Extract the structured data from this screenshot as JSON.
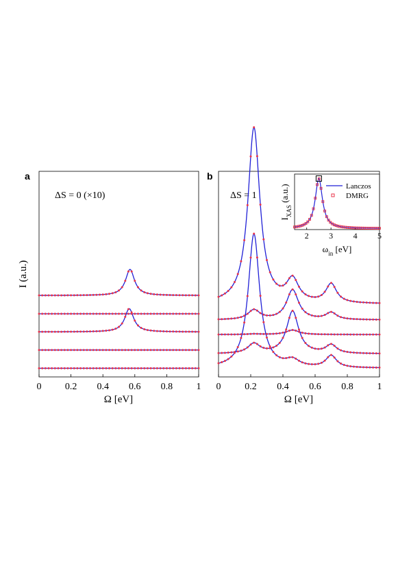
{
  "figure": {
    "panel_a_letter": "a",
    "panel_b_letter": "b",
    "colors": {
      "line": "#1f1fd6",
      "marker": "#e8334a",
      "axis": "#000000"
    }
  },
  "chart_data": [
    {
      "type": "line",
      "panel": "a",
      "annotation": "ΔS = 0 (×10)",
      "xlabel": "Ω [eV]",
      "ylabel": "I (a.u.)",
      "xlim": [
        0,
        1
      ],
      "xticks": [
        "0",
        "0.2",
        "0.4",
        "0.6",
        "0.8",
        "1"
      ],
      "yticks_shown": false,
      "series": [
        {
          "baseline": 0.42,
          "peaks": []
        },
        {
          "baseline": 1.31,
          "peaks": []
        },
        {
          "baseline": 2.19,
          "peaks": [
            {
              "center": 0.565,
              "height": 1.13,
              "width": 0.034
            }
          ]
        },
        {
          "baseline": 3.07,
          "peaks": []
        },
        {
          "baseline": 3.96,
          "peaks": [
            {
              "center": 0.57,
              "height": 1.27,
              "width": 0.034
            }
          ]
        }
      ]
    },
    {
      "type": "line",
      "panel": "b",
      "annotation": "ΔS = 1",
      "xlabel": "Ω [eV]",
      "xlim": [
        0,
        1
      ],
      "xticks": [
        "0",
        "0.2",
        "0.4",
        "0.6",
        "0.8",
        "1"
      ],
      "yticks_shown": false,
      "series": [
        {
          "baseline": 0.42,
          "peaks": [
            {
              "center": 0.22,
              "height": 6.53,
              "width": 0.043
            },
            {
              "center": 0.46,
              "height": 0.32,
              "width": 0.05
            },
            {
              "center": 0.7,
              "height": 0.58,
              "width": 0.04
            }
          ]
        },
        {
          "baseline": 1.12,
          "peaks": [
            {
              "center": 0.22,
              "height": 0.47,
              "width": 0.045
            },
            {
              "center": 0.46,
              "height": 2.07,
              "width": 0.045
            },
            {
              "center": 0.7,
              "height": 0.41,
              "width": 0.04
            }
          ]
        },
        {
          "baseline": 2.06,
          "peaks": [
            {
              "center": 0.22,
              "height": 0.03,
              "width": 0.05
            },
            {
              "center": 0.46,
              "height": 0.22,
              "width": 0.05
            }
          ]
        },
        {
          "baseline": 2.77,
          "peaks": [
            {
              "center": 0.22,
              "height": 0.47,
              "width": 0.045
            },
            {
              "center": 0.46,
              "height": 1.46,
              "width": 0.045
            },
            {
              "center": 0.7,
              "height": 0.34,
              "width": 0.04
            }
          ]
        },
        {
          "baseline": 3.54,
          "peaks": [
            {
              "center": 0.22,
              "height": 8.56,
              "width": 0.045
            },
            {
              "center": 0.46,
              "height": 1.07,
              "width": 0.045
            },
            {
              "center": 0.7,
              "height": 0.92,
              "width": 0.04
            }
          ]
        }
      ]
    },
    {
      "type": "line",
      "panel": "b-inset",
      "xlabel": "ω",
      "xlabel_sub": "in",
      "xlabel_unit": " [eV]",
      "ylabel": "I",
      "ylabel_sub": "XAS",
      "ylabel_unit": " (a.u.)",
      "xlim": [
        1.5,
        5
      ],
      "xticks": [
        "2",
        "3",
        "4",
        "5"
      ],
      "legend": {
        "position": "top-right",
        "line_label": "Lanczos",
        "marker_label": "DMRG"
      },
      "series": [
        {
          "name": "Lanczos",
          "peak_center": 2.5,
          "peak_height": 1.0,
          "peak_width": 0.18,
          "baseline": 0.02
        }
      ],
      "highlight_x": 2.5
    }
  ]
}
